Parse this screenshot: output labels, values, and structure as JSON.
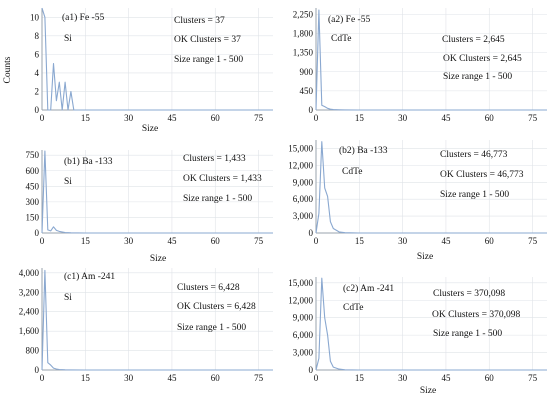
{
  "colors": {
    "series": "#8aa8d0",
    "axis": "#9aa3ad",
    "grid": "#dfe3e8",
    "panel_border": "#c8cdd3"
  },
  "chart_data": [
    {
      "id": "a1",
      "type": "line",
      "ylabel": "Counts",
      "xlabel": "Size",
      "xlim": [
        0,
        80
      ],
      "ylim": [
        0,
        11
      ],
      "xticks": [
        "0",
        "15",
        "30",
        "45",
        "60",
        "75"
      ],
      "yticks": [
        "0",
        "2",
        "4",
        "6",
        "8",
        "10"
      ],
      "annotations": {
        "source": "(a1) Fe -55",
        "material": "Si",
        "clusters": "Clusters = 37",
        "ok_clusters": "OK Clusters = 37",
        "size_range": "Size range 1 - 500"
      },
      "series": [
        {
          "x": [
            0,
            1,
            2,
            3,
            4,
            5,
            6,
            7,
            8,
            9,
            10,
            11,
            12,
            15,
            20,
            30,
            45,
            60,
            75,
            80
          ],
          "y": [
            11,
            10,
            0,
            0,
            5,
            1,
            3,
            0,
            3,
            0,
            2,
            0,
            0,
            0,
            0,
            0,
            0,
            0,
            0,
            0
          ]
        }
      ]
    },
    {
      "id": "a2",
      "type": "line",
      "ylabel": "",
      "xlabel": "",
      "xlim": [
        0,
        80
      ],
      "ylim": [
        0,
        2400
      ],
      "xticks": [
        "0",
        "15",
        "30",
        "45",
        "60",
        "75"
      ],
      "yticks": [
        "0",
        "450",
        "900",
        "1,350",
        "1,800",
        "2,250"
      ],
      "annotations": {
        "source": "(a2) Fe -55",
        "material": "CdTe",
        "clusters": "Clusters = 2,645",
        "ok_clusters": "OK Clusters = 2,645",
        "size_range": "Size range 1 - 500"
      },
      "series": [
        {
          "x": [
            0,
            1,
            2,
            3,
            4,
            5,
            6,
            8,
            10,
            15,
            30,
            45,
            60,
            75,
            80
          ],
          "y": [
            0,
            2350,
            110,
            80,
            40,
            20,
            10,
            5,
            2,
            0,
            0,
            0,
            0,
            0,
            0
          ]
        }
      ]
    },
    {
      "id": "b1",
      "type": "line",
      "ylabel": "",
      "xlabel": "Size",
      "xlim": [
        0,
        80
      ],
      "ylim": [
        0,
        800
      ],
      "xticks": [
        "0",
        "15",
        "30",
        "45",
        "60",
        "75"
      ],
      "yticks": [
        "0",
        "150",
        "300",
        "450",
        "600",
        "750"
      ],
      "annotations": {
        "source": "(b1) Ba -133",
        "material": "Si",
        "clusters": "Clusters = 1,433",
        "ok_clusters": "OK Clusters = 1,433",
        "size_range": "Size range 1 - 500"
      },
      "series": [
        {
          "x": [
            0,
            1,
            2,
            3,
            4,
            5,
            6,
            8,
            10,
            15,
            30,
            45,
            60,
            75,
            80
          ],
          "y": [
            0,
            790,
            30,
            20,
            60,
            25,
            15,
            5,
            2,
            0,
            0,
            0,
            0,
            0,
            0
          ]
        }
      ]
    },
    {
      "id": "b2",
      "type": "line",
      "ylabel": "",
      "xlabel": "Size",
      "xlim": [
        0,
        80
      ],
      "ylim": [
        0,
        16500
      ],
      "xticks": [
        "0",
        "15",
        "30",
        "45",
        "60",
        "75"
      ],
      "yticks": [
        "0",
        "3,000",
        "6,000",
        "9,000",
        "12,000",
        "15,000"
      ],
      "annotations": {
        "source": "(b2) Ba -133",
        "material": "CdTe",
        "clusters": "Clusters = 46,773",
        "ok_clusters": "OK Clusters = 46,773",
        "size_range": "Size range 1 - 500"
      },
      "series": [
        {
          "x": [
            0,
            1,
            2,
            3,
            4,
            5,
            6,
            8,
            10,
            15,
            30,
            45,
            60,
            75,
            80
          ],
          "y": [
            0,
            3500,
            16200,
            8000,
            6500,
            2000,
            800,
            200,
            50,
            0,
            0,
            0,
            0,
            0,
            0
          ]
        }
      ]
    },
    {
      "id": "c1",
      "type": "line",
      "ylabel": "",
      "xlabel": "",
      "xlim": [
        0,
        80
      ],
      "ylim": [
        0,
        4200
      ],
      "xticks": [
        "0",
        "15",
        "30",
        "45",
        "60",
        "75"
      ],
      "yticks": [
        "0",
        "800",
        "1,600",
        "2,400",
        "3,200",
        "4,000"
      ],
      "annotations": {
        "source": "(c1) Am -241",
        "material": "Si",
        "clusters": "Clusters = 6,428",
        "ok_clusters": "OK Clusters = 6,428",
        "size_range": "Size range 1 - 500"
      },
      "series": [
        {
          "x": [
            0,
            1,
            2,
            3,
            4,
            5,
            6,
            8,
            10,
            15,
            30,
            45,
            60,
            75,
            80
          ],
          "y": [
            0,
            4100,
            300,
            200,
            80,
            40,
            20,
            10,
            5,
            0,
            0,
            0,
            0,
            0,
            0
          ]
        }
      ]
    },
    {
      "id": "c2",
      "type": "line",
      "ylabel": "",
      "xlabel": "Size",
      "xlim": [
        0,
        80
      ],
      "ylim": [
        0,
        16000
      ],
      "xticks": [
        "0",
        "15",
        "30",
        "45",
        "60",
        "75"
      ],
      "yticks": [
        "0",
        "3,000",
        "6,000",
        "9,000",
        "12,000",
        "15,000"
      ],
      "annotations": {
        "source": "(c2) Am -241",
        "material": "CdTe",
        "clusters": "Clusters = 370,098",
        "ok_clusters": "OK Clusters = 370,098",
        "size_range": "Size range 1 - 500"
      },
      "series": [
        {
          "x": [
            0,
            1,
            2,
            3,
            4,
            5,
            6,
            8,
            10,
            15,
            30,
            45,
            60,
            75,
            80
          ],
          "y": [
            0,
            2000,
            15800,
            9000,
            6000,
            1500,
            500,
            150,
            40,
            0,
            0,
            0,
            0,
            0,
            0
          ]
        }
      ]
    }
  ]
}
